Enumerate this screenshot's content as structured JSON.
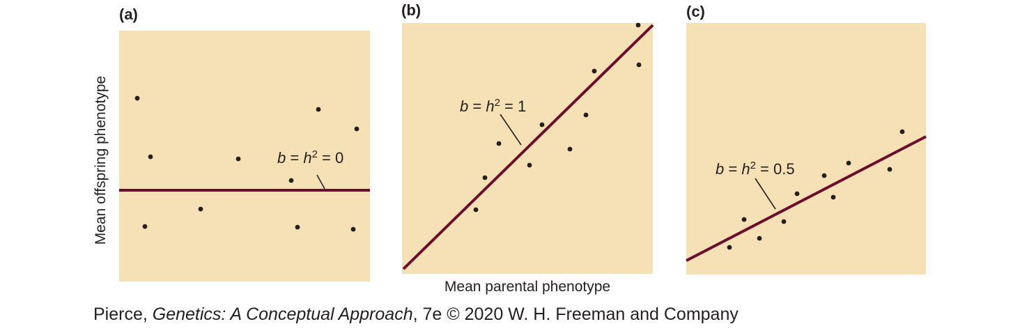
{
  "chart_data": [
    {
      "type": "scatter",
      "panel_label": "(a)",
      "annotation": {
        "b": "b",
        "h": "h",
        "sup": "2",
        "value": "0"
      },
      "regression_slope": 0,
      "points": [
        [
          -1,
          1
        ],
        [
          1,
          1
        ],
        [
          -1,
          -1
        ],
        [
          1,
          -1
        ],
        [
          0,
          0.5
        ],
        [
          0.5,
          -0.5
        ],
        [
          -0.7,
          0.2
        ],
        [
          0.8,
          0.6
        ],
        [
          -0.3,
          -0.8
        ],
        [
          0.2,
          0.9
        ]
      ],
      "fit_line": {
        "color": "#6b0d2d"
      },
      "background": "#f6e0b5"
    },
    {
      "type": "scatter",
      "panel_label": "(b)",
      "annotation": {
        "b": "b",
        "h": "h",
        "sup": "2",
        "value": "1"
      },
      "regression_slope": 1,
      "fit_line": {
        "color": "#6b0d2d"
      },
      "background": "#f6e0b5"
    },
    {
      "type": "scatter",
      "panel_label": "(c)",
      "annotation": {
        "b": "b",
        "h": "h",
        "sup": "2",
        "value": "0.5"
      },
      "regression_slope": 0.5,
      "fit_line": {
        "color": "#6b0d2d"
      },
      "background": "#f6e0b5"
    }
  ],
  "ylabel": "Mean offspring phenotype",
  "xlabel": "Mean parental phenotype",
  "credit": {
    "author": "Pierce, ",
    "title": "Genetics: A Conceptual Approach",
    "rest": ", 7e © 2020 W. H. Freeman and Company"
  }
}
